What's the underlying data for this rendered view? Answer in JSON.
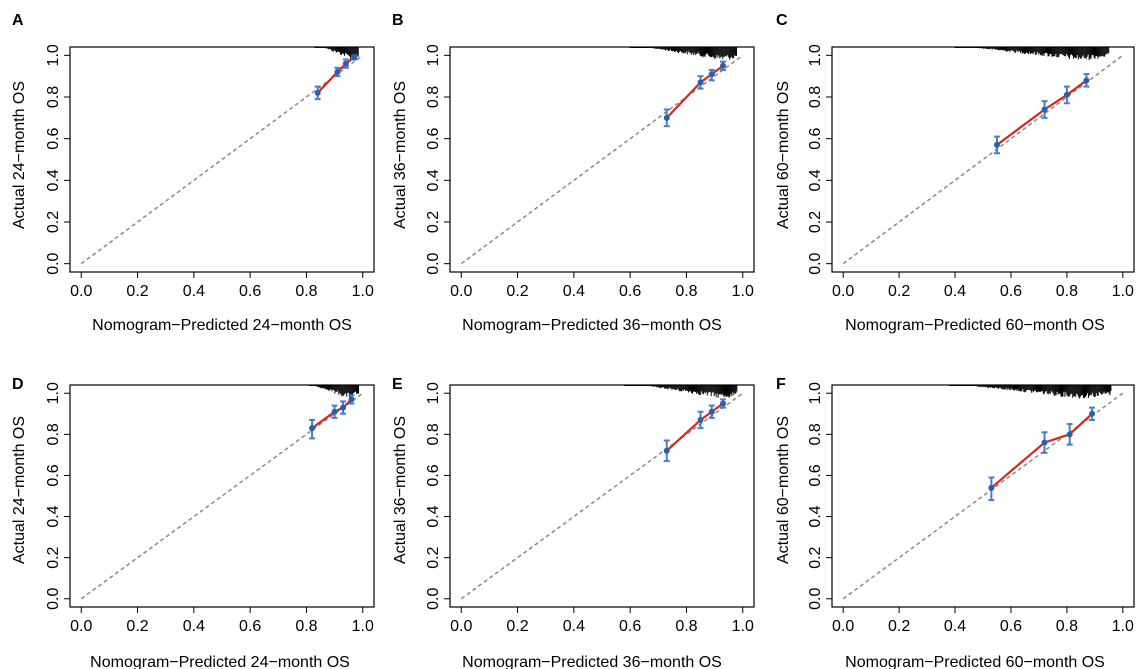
{
  "figure": {
    "colors": {
      "calibration_line": "#d7261e",
      "points": "#2b5fad",
      "error_bars": "#4a7ec4",
      "reference_line": "#8a8a8a",
      "rug": "#000000",
      "frame": "#000000"
    },
    "axis_ticks": [
      "0.0",
      "0.2",
      "0.4",
      "0.6",
      "0.8",
      "1.0"
    ]
  },
  "chart_data": [
    {
      "panel": "A",
      "type": "scatter",
      "xlabel": "Nomogram−Predicted 24−month OS",
      "ylabel": "Actual 24−month OS",
      "xlim": [
        0,
        1
      ],
      "ylim": [
        0,
        1
      ],
      "grid": false,
      "reference_line": "diagonal",
      "series": [
        {
          "x": [
            0.84,
            0.91,
            0.94,
            0.97
          ],
          "y": [
            0.82,
            0.92,
            0.96,
            0.99
          ],
          "y_low": [
            0.79,
            0.9,
            0.94,
            0.98
          ],
          "y_high": [
            0.85,
            0.94,
            0.98,
            1.0
          ]
        }
      ],
      "rug": {
        "min": 0.83,
        "max": 0.985,
        "mode": 0.97
      }
    },
    {
      "panel": "B",
      "type": "scatter",
      "xlabel": "Nomogram−Predicted 36−month OS",
      "ylabel": "Actual 36−month OS",
      "xlim": [
        0,
        1
      ],
      "ylim": [
        0,
        1
      ],
      "grid": false,
      "reference_line": "diagonal",
      "series": [
        {
          "x": [
            0.73,
            0.85,
            0.89,
            0.93
          ],
          "y": [
            0.7,
            0.87,
            0.91,
            0.95
          ],
          "y_low": [
            0.66,
            0.84,
            0.88,
            0.93
          ],
          "y_high": [
            0.74,
            0.9,
            0.93,
            0.97
          ]
        }
      ],
      "rug": {
        "min": 0.6,
        "max": 0.98,
        "mode": 0.93
      }
    },
    {
      "panel": "C",
      "type": "scatter",
      "xlabel": "Nomogram−Predicted 60−month OS",
      "ylabel": "Actual 60−month OS",
      "xlim": [
        0,
        1
      ],
      "ylim": [
        0,
        1
      ],
      "grid": false,
      "reference_line": "diagonal",
      "series": [
        {
          "x": [
            0.55,
            0.72,
            0.8,
            0.87
          ],
          "y": [
            0.57,
            0.74,
            0.81,
            0.88
          ],
          "y_low": [
            0.53,
            0.7,
            0.77,
            0.85
          ],
          "y_high": [
            0.61,
            0.78,
            0.85,
            0.91
          ]
        }
      ],
      "rug": {
        "min": 0.4,
        "max": 0.95,
        "mode": 0.85
      }
    },
    {
      "panel": "D",
      "type": "scatter",
      "xlabel": "Nomogram−Predicted 24−month OS",
      "ylabel": "Actual 24−month OS",
      "xlim": [
        0,
        1
      ],
      "ylim": [
        0,
        1
      ],
      "grid": false,
      "reference_line": "diagonal",
      "series": [
        {
          "x": [
            0.82,
            0.9,
            0.93,
            0.96
          ],
          "y": [
            0.83,
            0.91,
            0.93,
            0.97
          ],
          "y_low": [
            0.78,
            0.88,
            0.9,
            0.95
          ],
          "y_high": [
            0.87,
            0.94,
            0.96,
            0.99
          ]
        }
      ],
      "rug": {
        "min": 0.81,
        "max": 0.985,
        "mode": 0.95
      }
    },
    {
      "panel": "E",
      "type": "scatter",
      "xlabel": "Nomogram−Predicted 36−month OS",
      "ylabel": "Actual 36−month OS",
      "xlim": [
        0,
        1
      ],
      "ylim": [
        0,
        1
      ],
      "grid": false,
      "reference_line": "diagonal",
      "series": [
        {
          "x": [
            0.73,
            0.85,
            0.89,
            0.93
          ],
          "y": [
            0.72,
            0.87,
            0.91,
            0.95
          ],
          "y_low": [
            0.67,
            0.83,
            0.88,
            0.93
          ],
          "y_high": [
            0.77,
            0.91,
            0.94,
            0.97
          ]
        }
      ],
      "rug": {
        "min": 0.58,
        "max": 0.98,
        "mode": 0.93
      }
    },
    {
      "panel": "F",
      "type": "scatter",
      "xlabel": "Nomogram−Predicted 60−month OS",
      "ylabel": "Actual 60−month OS",
      "xlim": [
        0,
        1
      ],
      "ylim": [
        0,
        1
      ],
      "grid": false,
      "reference_line": "diagonal",
      "series": [
        {
          "x": [
            0.53,
            0.72,
            0.81,
            0.89
          ],
          "y": [
            0.54,
            0.76,
            0.8,
            0.9
          ],
          "y_low": [
            0.48,
            0.71,
            0.75,
            0.87
          ],
          "y_high": [
            0.59,
            0.81,
            0.85,
            0.93
          ]
        }
      ],
      "rug": {
        "min": 0.38,
        "max": 0.96,
        "mode": 0.85
      }
    }
  ]
}
